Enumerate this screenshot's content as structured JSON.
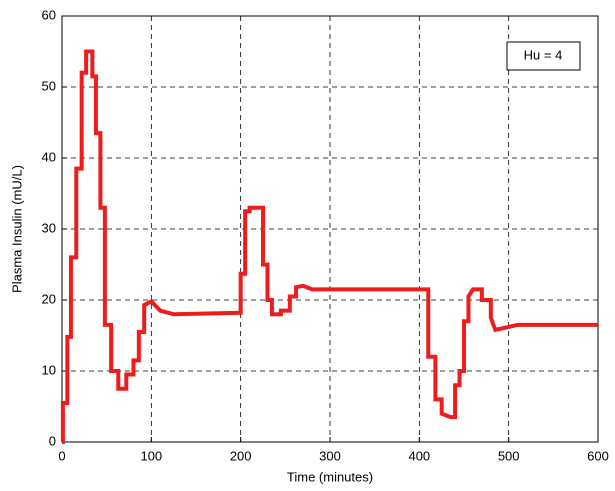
{
  "chart_data": {
    "type": "line",
    "xlabel": "Time (minutes)",
    "ylabel": "Plasma Insulin (mU/L)",
    "annotation": "Hu = 4",
    "xlim": [
      0,
      600
    ],
    "ylim": [
      0,
      60
    ],
    "xticks": [
      0,
      100,
      200,
      300,
      400,
      500,
      600
    ],
    "yticks": [
      0,
      10,
      20,
      30,
      40,
      50,
      60
    ],
    "grid": true,
    "series": [
      {
        "color": "#ee1c1c",
        "x": [
          0,
          1,
          1,
          6,
          6,
          10,
          10,
          16,
          16,
          22,
          22,
          27,
          27,
          34,
          34,
          38,
          38,
          43,
          43,
          48,
          48,
          55,
          55,
          63,
          63,
          72,
          72,
          80,
          80,
          86,
          86,
          92,
          92,
          100,
          110,
          125,
          200,
          200,
          205,
          205,
          210,
          210,
          225,
          225,
          230,
          230,
          235,
          235,
          245,
          245,
          255,
          255,
          262,
          262,
          270,
          280,
          290,
          400,
          410,
          410,
          418,
          418,
          425,
          425,
          435,
          440,
          440,
          445,
          445,
          450,
          450,
          455,
          455,
          460,
          470,
          470,
          480,
          480,
          485,
          500,
          510,
          600
        ],
        "values": [
          0,
          0,
          5.5,
          5.5,
          14.8,
          14.8,
          26,
          26,
          38.5,
          38.5,
          52,
          52,
          55,
          55,
          51.5,
          51.5,
          43.5,
          43.5,
          33,
          33,
          16.5,
          16.5,
          10,
          10,
          7.5,
          7.5,
          9.5,
          9.5,
          11.5,
          11.5,
          15.5,
          15.5,
          19.3,
          19.8,
          18.5,
          18,
          18.2,
          23.7,
          23.7,
          32.5,
          32.5,
          33,
          33,
          25,
          25,
          20,
          20,
          18,
          18,
          18.5,
          18.5,
          20.5,
          20.5,
          21.8,
          22,
          21.5,
          21.5,
          21.5,
          21.5,
          12,
          12,
          6,
          6,
          4,
          3.5,
          3.5,
          8,
          8,
          10,
          10,
          17,
          17,
          20.5,
          21.5,
          21.5,
          20,
          20,
          17.5,
          15.8,
          16.2,
          16.5,
          16.5
        ]
      }
    ]
  }
}
